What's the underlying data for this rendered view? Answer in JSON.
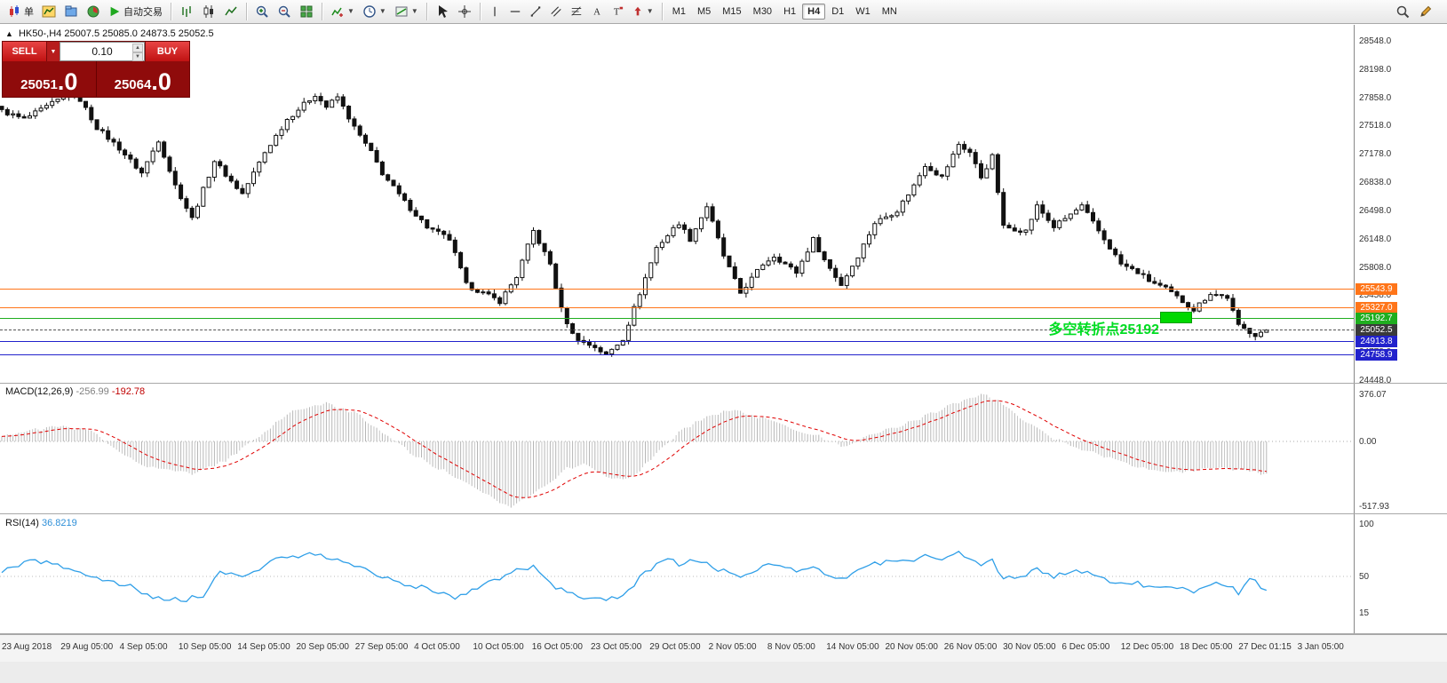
{
  "toolbar": {
    "new_order_label": "单",
    "autotrading_label": "自动交易",
    "timeframes": [
      "M1",
      "M5",
      "M15",
      "M30",
      "H1",
      "H4",
      "D1",
      "W1",
      "MN"
    ],
    "active_timeframe": "H4"
  },
  "trade_panel": {
    "sell_label": "SELL",
    "buy_label": "BUY",
    "volume": "0.10",
    "sell_price_main": "25051",
    "sell_price_dec": ".0",
    "buy_price_main": "25064",
    "buy_price_dec": ".0"
  },
  "chart": {
    "title": "HK50-,H4",
    "ohlc": "25007.5 25085.0 24873.5 25052.5",
    "annotation": "多空转折点25192",
    "annotation_color": "#00dd22",
    "marker_color": "#00d800",
    "levels": [
      {
        "price": 25543.9,
        "label": "25543.9",
        "color": "#ff7519",
        "type": "hline"
      },
      {
        "price": 25327.0,
        "label": "25327.0",
        "color": "#ff7519",
        "type": "hline"
      },
      {
        "price": 25192.7,
        "label": "25192.7",
        "color": "#1fae1f",
        "type": "hline"
      },
      {
        "price": 25052.5,
        "label": "25052.5",
        "color": "#3a3a3a",
        "type": "price"
      },
      {
        "price": 24913.8,
        "label": "24913.8",
        "color": "#2222cc",
        "type": "hline"
      },
      {
        "price": 24758.9,
        "label": "24758.9",
        "color": "#2222cc",
        "type": "hline"
      }
    ],
    "y_axis": [
      "28548.0",
      "28198.0",
      "27858.0",
      "27518.0",
      "27178.0",
      "26838.0",
      "26498.0",
      "26148.0",
      "25808.0",
      "25458.0",
      "25118.0",
      "24778.0",
      "24448.0"
    ],
    "x_axis": [
      "23 Aug 2018",
      "29 Aug 05:00",
      "4 Sep 05:00",
      "10 Sep 05:00",
      "14 Sep 05:00",
      "20 Sep 05:00",
      "27 Sep 05:00",
      "4 Oct 05:00",
      "10 Oct 05:00",
      "16 Oct 05:00",
      "23 Oct 05:00",
      "29 Oct 05:00",
      "2 Nov 05:00",
      "8 Nov 05:00",
      "14 Nov 05:00",
      "20 Nov 05:00",
      "26 Nov 05:00",
      "30 Nov 05:00",
      "6 Dec 05:00",
      "12 Dec 05:00",
      "18 Dec 05:00",
      "27 Dec 01:15",
      "3 Jan 05:00"
    ]
  },
  "macd": {
    "label": "MACD(12,26,9)",
    "value1": "-256.99",
    "value2": "-192.78",
    "scale": [
      "376.07",
      "0.00",
      "-517.93"
    ]
  },
  "rsi": {
    "label": "RSI(14)",
    "value": "36.8219",
    "scale": [
      "100",
      "50",
      "15"
    ]
  },
  "chart_data": [
    {
      "type": "candlestick",
      "symbol": "HK50-",
      "timeframe": "H4",
      "current_bar": {
        "open": 25007.5,
        "high": 25085.0,
        "low": 24873.5,
        "close": 25052.5
      },
      "price_range": [
        24448.0,
        28548.0
      ],
      "bar_count": 227,
      "noise": 55,
      "wick": 55,
      "close_keypoints": [
        [
          0,
          27700
        ],
        [
          4,
          27600
        ],
        [
          8,
          27750
        ],
        [
          13,
          27950
        ],
        [
          17,
          27500
        ],
        [
          21,
          27250
        ],
        [
          25,
          26950
        ],
        [
          28,
          27350
        ],
        [
          31,
          26800
        ],
        [
          34,
          26400
        ],
        [
          38,
          27100
        ],
        [
          41,
          26850
        ],
        [
          43,
          26700
        ],
        [
          47,
          27200
        ],
        [
          51,
          27600
        ],
        [
          56,
          27900
        ],
        [
          58,
          27750
        ],
        [
          60,
          27870
        ],
        [
          63,
          27500
        ],
        [
          66,
          27200
        ],
        [
          68,
          26950
        ],
        [
          72,
          26600
        ],
        [
          76,
          26300
        ],
        [
          80,
          26150
        ],
        [
          83,
          25600
        ],
        [
          86,
          25500
        ],
        [
          89,
          25400
        ],
        [
          92,
          25700
        ],
        [
          95,
          26250
        ],
        [
          98,
          25850
        ],
        [
          100,
          25300
        ],
        [
          102,
          25000
        ],
        [
          104,
          24900
        ],
        [
          106,
          24850
        ],
        [
          108,
          24750
        ],
        [
          111,
          24950
        ],
        [
          114,
          25500
        ],
        [
          117,
          26050
        ],
        [
          121,
          26350
        ],
        [
          123,
          26150
        ],
        [
          126,
          26550
        ],
        [
          129,
          25950
        ],
        [
          132,
          25500
        ],
        [
          136,
          25850
        ],
        [
          138,
          25950
        ],
        [
          142,
          25750
        ],
        [
          145,
          26150
        ],
        [
          147,
          25900
        ],
        [
          150,
          25600
        ],
        [
          153,
          25950
        ],
        [
          156,
          26350
        ],
        [
          160,
          26500
        ],
        [
          163,
          26800
        ],
        [
          165,
          27050
        ],
        [
          168,
          26900
        ],
        [
          171,
          27300
        ],
        [
          173,
          27200
        ],
        [
          175,
          26900
        ],
        [
          177,
          27150
        ],
        [
          179,
          26300
        ],
        [
          183,
          26250
        ],
        [
          185,
          26550
        ],
        [
          188,
          26300
        ],
        [
          191,
          26450
        ],
        [
          193,
          26550
        ],
        [
          196,
          26250
        ],
        [
          200,
          25850
        ],
        [
          203,
          25750
        ],
        [
          205,
          25650
        ],
        [
          208,
          25550
        ],
        [
          210,
          25450
        ],
        [
          213,
          25300
        ],
        [
          216,
          25500
        ],
        [
          219,
          25450
        ],
        [
          221,
          25100
        ],
        [
          224,
          25000
        ],
        [
          226,
          25052.5
        ]
      ]
    },
    {
      "type": "bar",
      "name": "MACD(12,26,9) histogram with signal line",
      "ylim": [
        -517.93,
        376.07
      ],
      "signal_period": 9,
      "last": {
        "macd": -256.99,
        "signal": -192.78
      },
      "keypoints": [
        [
          0,
          50
        ],
        [
          10,
          120
        ],
        [
          16,
          80
        ],
        [
          20,
          -50
        ],
        [
          26,
          -200
        ],
        [
          34,
          -260
        ],
        [
          40,
          -150
        ],
        [
          45,
          0
        ],
        [
          52,
          250
        ],
        [
          58,
          300
        ],
        [
          63,
          230
        ],
        [
          68,
          80
        ],
        [
          74,
          -120
        ],
        [
          80,
          -260
        ],
        [
          86,
          -420
        ],
        [
          91,
          -520
        ],
        [
          96,
          -380
        ],
        [
          101,
          -220
        ],
        [
          104,
          -180
        ],
        [
          108,
          -280
        ],
        [
          112,
          -300
        ],
        [
          116,
          -150
        ],
        [
          121,
          80
        ],
        [
          127,
          220
        ],
        [
          131,
          250
        ],
        [
          136,
          180
        ],
        [
          140,
          120
        ],
        [
          145,
          60
        ],
        [
          150,
          -40
        ],
        [
          155,
          40
        ],
        [
          160,
          120
        ],
        [
          165,
          200
        ],
        [
          170,
          300
        ],
        [
          175,
          380
        ],
        [
          179,
          300
        ],
        [
          183,
          150
        ],
        [
          188,
          20
        ],
        [
          193,
          -60
        ],
        [
          199,
          -150
        ],
        [
          205,
          -220
        ],
        [
          211,
          -250
        ],
        [
          216,
          -200
        ],
        [
          220,
          -230
        ],
        [
          226,
          -257
        ]
      ]
    },
    {
      "type": "line",
      "name": "RSI(14)",
      "ylim": [
        0,
        100
      ],
      "last": 36.8219,
      "keypoints": [
        [
          0,
          55
        ],
        [
          6,
          65
        ],
        [
          12,
          58
        ],
        [
          19,
          45
        ],
        [
          23,
          40
        ],
        [
          27,
          30
        ],
        [
          33,
          28
        ],
        [
          36,
          32
        ],
        [
          39,
          55
        ],
        [
          43,
          48
        ],
        [
          50,
          70
        ],
        [
          53,
          68
        ],
        [
          56,
          72
        ],
        [
          60,
          65
        ],
        [
          63,
          60
        ],
        [
          68,
          50
        ],
        [
          73,
          42
        ],
        [
          78,
          35
        ],
        [
          81,
          30
        ],
        [
          85,
          40
        ],
        [
          88,
          45
        ],
        [
          92,
          55
        ],
        [
          95,
          60
        ],
        [
          98,
          42
        ],
        [
          101,
          35
        ],
        [
          104,
          30
        ],
        [
          108,
          28
        ],
        [
          111,
          32
        ],
        [
          114,
          48
        ],
        [
          117,
          62
        ],
        [
          119,
          68
        ],
        [
          121,
          60
        ],
        [
          123,
          65
        ],
        [
          126,
          62
        ],
        [
          129,
          55
        ],
        [
          132,
          50
        ],
        [
          136,
          60
        ],
        [
          138,
          62
        ],
        [
          142,
          55
        ],
        [
          145,
          58
        ],
        [
          147,
          52
        ],
        [
          150,
          48
        ],
        [
          153,
          55
        ],
        [
          156,
          62
        ],
        [
          160,
          66
        ],
        [
          163,
          64
        ],
        [
          165,
          70
        ],
        [
          168,
          65
        ],
        [
          171,
          72
        ],
        [
          173,
          68
        ],
        [
          175,
          60
        ],
        [
          177,
          64
        ],
        [
          179,
          48
        ],
        [
          183,
          52
        ],
        [
          185,
          58
        ],
        [
          188,
          50
        ],
        [
          191,
          53
        ],
        [
          193,
          55
        ],
        [
          196,
          48
        ],
        [
          200,
          42
        ],
        [
          203,
          44
        ],
        [
          205,
          40
        ],
        [
          208,
          42
        ],
        [
          210,
          38
        ],
        [
          213,
          36
        ],
        [
          216,
          44
        ],
        [
          219,
          42
        ],
        [
          221,
          35
        ],
        [
          223,
          48
        ],
        [
          226,
          36.8
        ]
      ]
    }
  ]
}
